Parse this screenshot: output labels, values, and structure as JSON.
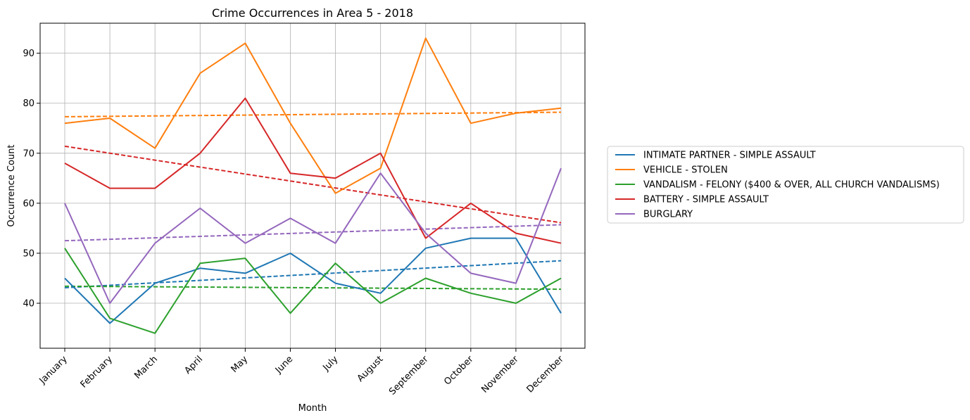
{
  "chart_data": {
    "type": "line",
    "title": "Crime Occurrences in Area 5 - 2018",
    "xlabel": "Month",
    "ylabel": "Occurrence Count",
    "categories": [
      "January",
      "February",
      "March",
      "April",
      "May",
      "June",
      "July",
      "August",
      "September",
      "October",
      "November",
      "December"
    ],
    "ylim": [
      31,
      96
    ],
    "yticks": [
      40,
      50,
      60,
      70,
      80,
      90
    ],
    "grid": true,
    "legend_position": "right",
    "trendlines": "dashed linear fit per series",
    "series": [
      {
        "name": "INTIMATE PARTNER - SIMPLE ASSAULT",
        "color": "#1f77b4",
        "values": [
          45,
          36,
          44,
          47,
          46,
          50,
          44,
          42,
          51,
          53,
          53,
          38
        ],
        "trend": [
          43.1,
          48.5
        ]
      },
      {
        "name": "VEHICLE - STOLEN",
        "color": "#ff7f0e",
        "values": [
          76,
          77,
          71,
          86,
          92,
          76,
          62,
          67,
          93,
          76,
          78,
          79
        ],
        "trend": [
          77.3,
          78.2
        ]
      },
      {
        "name": "VANDALISM - FELONY ($400 & OVER, ALL CHURCH VANDALISMS)",
        "color": "#2ca02c",
        "values": [
          51,
          37,
          34,
          48,
          49,
          38,
          48,
          40,
          45,
          42,
          40,
          45
        ],
        "trend": [
          43.4,
          42.8
        ]
      },
      {
        "name": "BATTERY - SIMPLE ASSAULT",
        "color": "#d62728",
        "values": [
          68,
          63,
          63,
          70,
          81,
          66,
          65,
          70,
          53,
          60,
          54,
          52
        ],
        "trend": [
          71.4,
          56.1
        ]
      },
      {
        "name": "BURGLARY",
        "color": "#9467bd",
        "values": [
          60,
          40,
          52,
          59,
          52,
          57,
          52,
          66,
          54,
          46,
          44,
          67
        ],
        "trend": [
          52.5,
          55.7
        ]
      }
    ]
  }
}
